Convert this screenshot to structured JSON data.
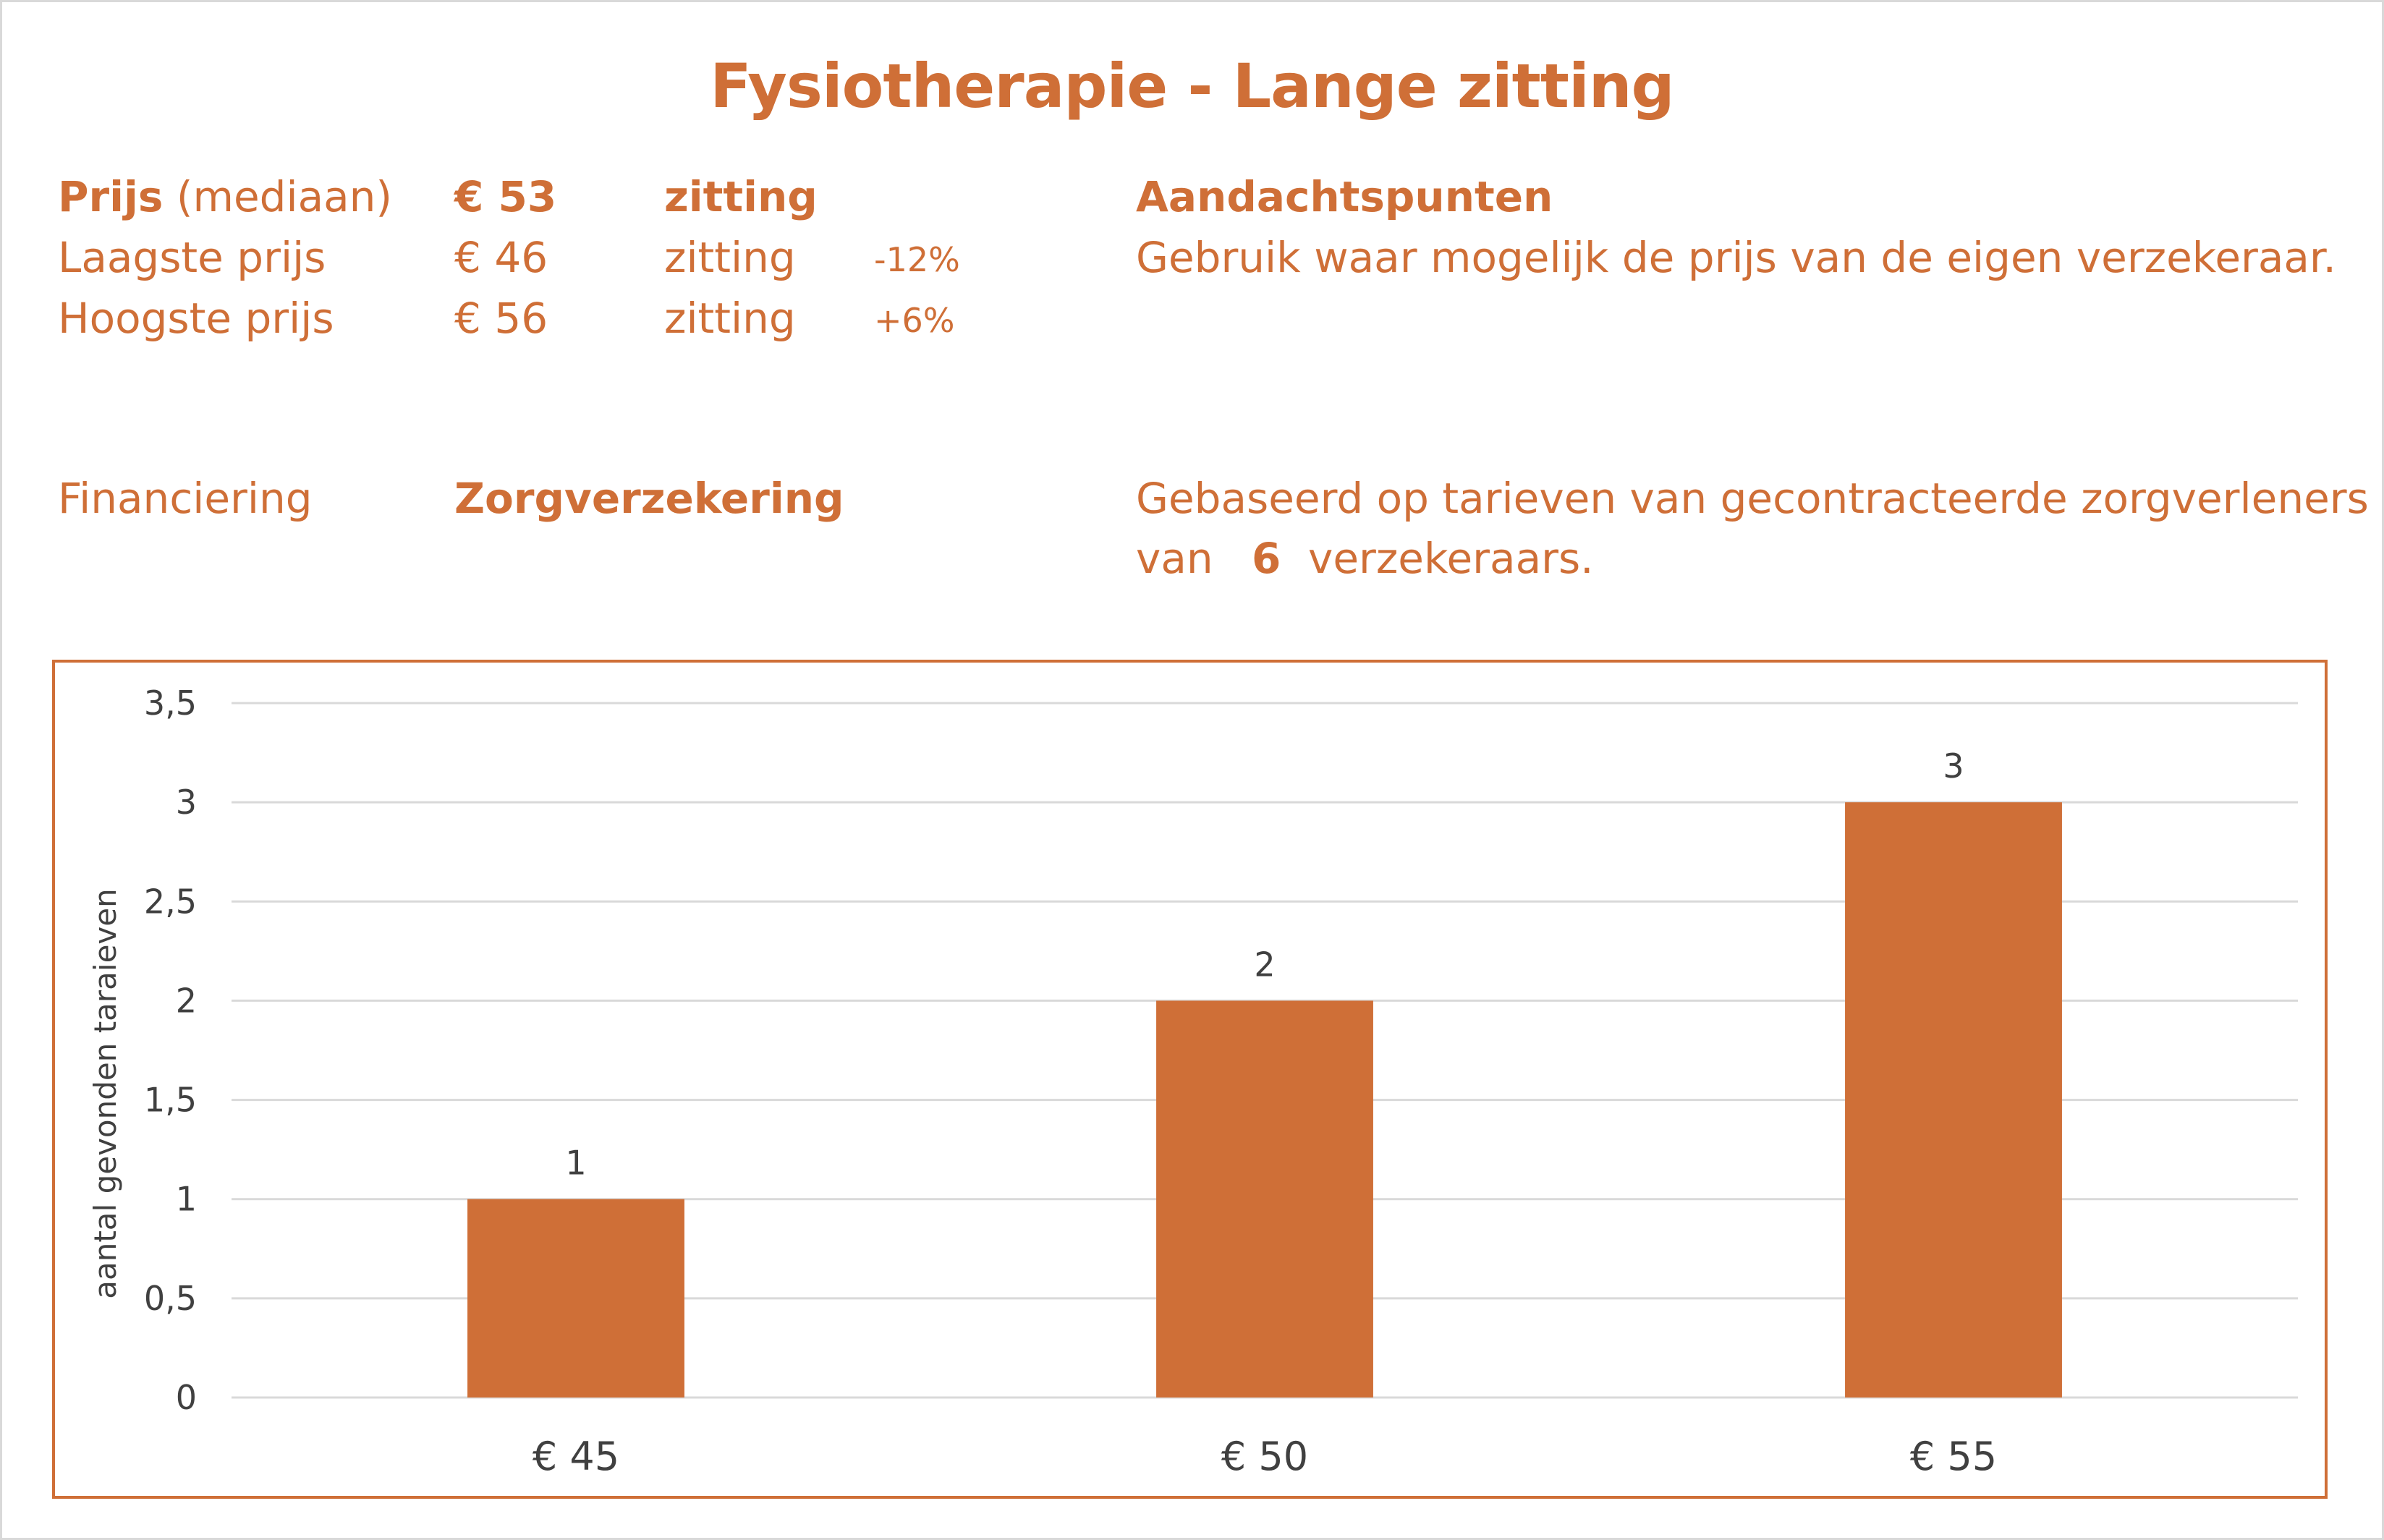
{
  "title": "Fysiotherapie - Lange zitting",
  "prices": {
    "median": {
      "label_bold": "Prijs",
      "label_suffix": " (mediaan)",
      "value": "€ 53",
      "unit": "zitting"
    },
    "lowest": {
      "label": "Laagste prijs",
      "value": "€ 46",
      "unit": "zitting",
      "diff": "-12%"
    },
    "highest": {
      "label": "Hoogste prijs",
      "value": "€ 56",
      "unit": "zitting",
      "diff": "+6%"
    }
  },
  "attention": {
    "heading": "Aandachtspunten",
    "text": "Gebruik waar mogelijk de prijs van de eigen verzekeraar."
  },
  "financing": {
    "label": "Financiering",
    "value": "Zorgverzekering",
    "note_line1": "Gebaseerd op tarieven van gecontracteerde zorgverleners",
    "note_prefix": "van",
    "insurer_count": "6",
    "note_suffix": "verzekeraars."
  },
  "colors": {
    "accent": "#cf6f37",
    "grid": "#d9d9d9",
    "axis_text": "#404040"
  },
  "chart_data": {
    "type": "bar",
    "categories": [
      "€ 45",
      "€ 50",
      "€ 55"
    ],
    "values": [
      1,
      2,
      3
    ],
    "data_labels": [
      "1",
      "2",
      "3"
    ],
    "ylabel": "aantal gevonden taraieven",
    "xlabel": "",
    "ylim": [
      0,
      3.5
    ],
    "yticks": [
      "0",
      "0,5",
      "1",
      "1,5",
      "2",
      "2,5",
      "3",
      "3,5"
    ],
    "grid": true,
    "legend": "none"
  }
}
